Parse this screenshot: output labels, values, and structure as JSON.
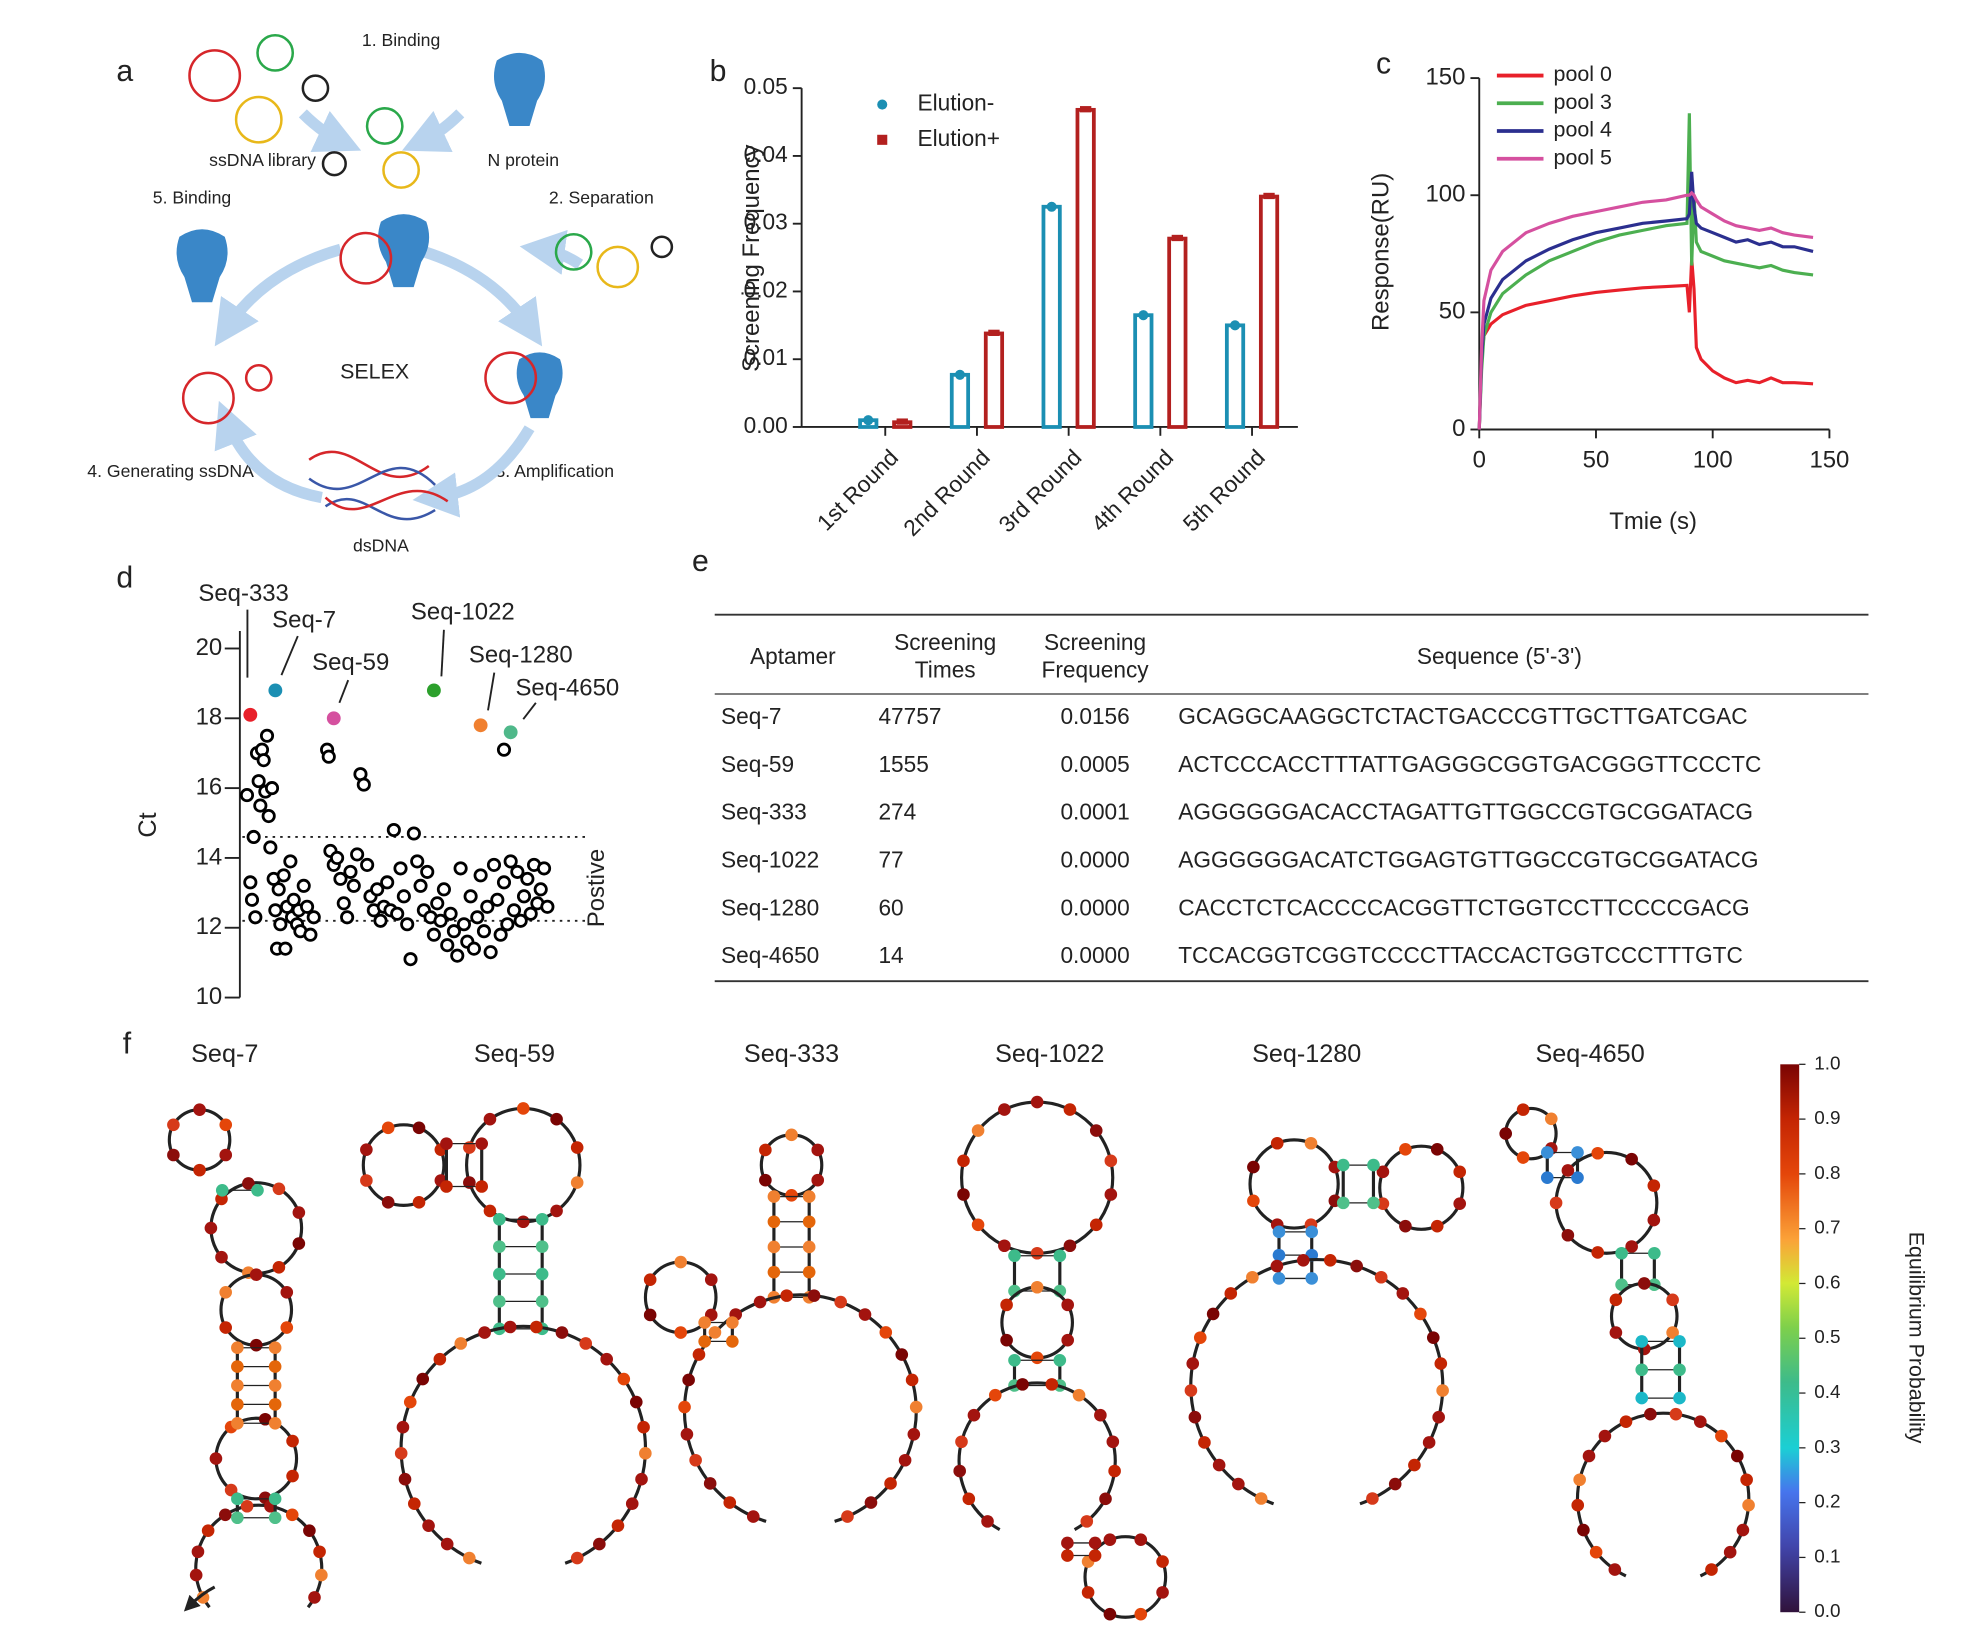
{
  "panel_a": {
    "letter": "a",
    "labels": [
      "1. Binding",
      "ssDNA library",
      "N protein",
      "5. Binding",
      "2. Separation",
      "SELEX",
      "3. Amplification",
      "4. Generating ssDNA",
      "dsDNA"
    ]
  },
  "chart_data": [
    {
      "type": "bar",
      "label": "b",
      "ylabel": "Screening Frequency",
      "categories": [
        "1st Round",
        "2nd Round",
        "3rd Round",
        "4th Round",
        "5th Round"
      ],
      "series": [
        {
          "name": "Elution-",
          "color": "#1b8fb3",
          "marker": "circle",
          "values": [
            0.001,
            0.0077,
            0.0325,
            0.0165,
            0.015
          ]
        },
        {
          "name": "Elution+",
          "color": "#b3201f",
          "marker": "square",
          "values": [
            0.0007,
            0.0138,
            0.0468,
            0.0278,
            0.034
          ]
        }
      ],
      "ylim": [
        0,
        0.05
      ],
      "yticks": [
        {
          "value": 0,
          "label": "0.00"
        },
        0.01,
        0.02,
        0.03,
        0.04,
        0.05
      ]
    },
    {
      "type": "line",
      "label": "c",
      "xlabel": "Tmie (s)",
      "ylabel": "Response(RU)",
      "legend": "top-left",
      "x": [
        0,
        1,
        2,
        5,
        10,
        20,
        30,
        40,
        50,
        60,
        70,
        80,
        89,
        90,
        91,
        92,
        93,
        95,
        100,
        105,
        110,
        115,
        120,
        125,
        130,
        135,
        143
      ],
      "series": [
        {
          "name": "pool 0",
          "color": "#e8202a",
          "values": [
            0,
            30,
            40,
            45,
            49,
            53,
            55,
            57,
            58.5,
            59.5,
            60.5,
            61,
            61.5,
            50,
            73,
            60,
            35,
            30,
            25,
            22,
            20,
            21,
            20,
            22,
            20,
            20,
            19.5
          ]
        },
        {
          "name": "pool 3",
          "color": "#4caf50",
          "values": [
            0,
            25,
            40,
            50,
            58,
            66,
            72,
            76,
            80,
            83,
            85,
            87,
            88,
            135,
            70,
            100,
            80,
            76,
            74,
            72,
            71,
            70,
            69,
            70,
            68,
            67,
            66
          ]
        },
        {
          "name": "pool 4",
          "color": "#2b2f8f",
          "values": [
            0,
            30,
            45,
            56,
            64,
            72,
            77,
            81,
            84,
            86,
            88,
            89,
            90,
            92,
            110,
            95,
            88,
            86,
            84,
            82,
            80,
            81,
            79,
            80,
            78,
            78,
            76
          ]
        },
        {
          "name": "pool 5",
          "color": "#d5509f",
          "values": [
            0,
            35,
            55,
            68,
            76,
            84,
            88,
            91,
            93,
            95,
            97,
            98,
            100,
            100,
            101,
            100,
            98,
            95,
            92,
            89,
            87,
            86,
            85,
            86,
            84,
            83,
            82
          ]
        }
      ],
      "xlim": [
        0,
        150
      ],
      "xticks": [
        0,
        50,
        100,
        150
      ],
      "ylim": [
        0,
        150
      ],
      "yticks": [
        0,
        50,
        100,
        150
      ]
    },
    {
      "type": "scatter",
      "label": "d",
      "ylabel": "Ct",
      "color": "#000000",
      "x": [
        1,
        2,
        2.5,
        3,
        3.5,
        4,
        4.5,
        5,
        5.5,
        6,
        6.5,
        7,
        7.5,
        8,
        8.5,
        9,
        9.5,
        10,
        10.5,
        11,
        12,
        12.5,
        13,
        14,
        14.5,
        15,
        16,
        16.5,
        17,
        18,
        19,
        20,
        21,
        25,
        25.5,
        26,
        27,
        28,
        29,
        30,
        31,
        32,
        33,
        34,
        35,
        36,
        37,
        38,
        39,
        40,
        41,
        42,
        43,
        44,
        45,
        46,
        47,
        48,
        49,
        50,
        51,
        52,
        53,
        54,
        55,
        56,
        57,
        58,
        59,
        60,
        61,
        62,
        63,
        64,
        65,
        66,
        67,
        68,
        69,
        70,
        71,
        72,
        73,
        74,
        75,
        76,
        77,
        78,
        79,
        80,
        81,
        82,
        83,
        84,
        85,
        86,
        87,
        88,
        89,
        90,
        91,
        78
      ],
      "y": [
        15.8,
        13.3,
        12.8,
        14.6,
        12.3,
        17,
        16.2,
        15.5,
        17.1,
        16.8,
        15.9,
        17.5,
        15.2,
        14.3,
        16,
        13.4,
        12.5,
        11.4,
        13.1,
        12.1,
        13.5,
        11.4,
        12.6,
        13.9,
        12.3,
        12.8,
        12.1,
        12.5,
        11.9,
        13.2,
        12.6,
        11.8,
        12.3,
        17.1,
        16.9,
        14.2,
        13.8,
        14,
        13.4,
        12.7,
        12.3,
        13.6,
        13.2,
        14.1,
        16.4,
        16.1,
        13.8,
        12.9,
        12.5,
        13.1,
        12.2,
        12.6,
        13.3,
        12.5,
        14.8,
        12.4,
        13.7,
        12.9,
        12.1,
        11.1,
        14.7,
        13.9,
        13.2,
        12.5,
        13.6,
        12.3,
        11.8,
        12.7,
        12.2,
        13.1,
        11.5,
        12.4,
        11.9,
        11.2,
        13.7,
        12.1,
        11.6,
        12.9,
        11.4,
        12.3,
        13.5,
        11.9,
        12.6,
        11.3,
        13.8,
        12.8,
        11.8,
        13.3,
        12.1,
        13.9,
        12.5,
        13.6,
        12.2,
        12.9,
        13.4,
        12.4,
        13.8,
        12.7,
        13.1,
        13.7,
        12.6,
        17.1
      ],
      "highlights": [
        {
          "name": "Seq-333",
          "color": "#e8202a",
          "x": 2,
          "y": 18.1
        },
        {
          "name": "Seq-7",
          "color": "#1b8fb3",
          "x": 9.5,
          "y": 18.8
        },
        {
          "name": "Seq-59",
          "color": "#d5509f",
          "x": 27,
          "y": 18.0
        },
        {
          "name": "Seq-1022",
          "color": "#2ca02c",
          "x": 57,
          "y": 18.8
        },
        {
          "name": "Seq-1280",
          "color": "#f08030",
          "x": 71,
          "y": 17.8
        },
        {
          "name": "Seq-4650",
          "color": "#4fb88a",
          "x": 80,
          "y": 17.6
        }
      ],
      "thresholds": [
        14.6,
        12.2
      ],
      "threshold_label": "Postive",
      "xlim": [
        0,
        100
      ],
      "ylim": [
        10,
        20.5
      ],
      "yticks": [
        10,
        12,
        14,
        16,
        18,
        20
      ]
    }
  ],
  "table": {
    "label": "e",
    "header": [
      "Aptamer",
      "Screening Times",
      "Screening Frequency",
      "Sequence (5'-3')"
    ],
    "rows": [
      [
        "Seq-7",
        "47757",
        "0.0156",
        "GCAGGCAAGGCTCTACTGACCCGTTGCTTGATCGAC"
      ],
      [
        "Seq-59",
        "1555",
        "0.0005",
        "ACTCCCACCTTTATTGAGGGCGGTGACGGGTTCCCTC"
      ],
      [
        "Seq-333",
        "274",
        "0.0001",
        "AGGGGGGACACCTAGATTGTTGGCCGTGCGGATACG"
      ],
      [
        "Seq-1022",
        "77",
        "0.0000",
        "AGGGGGGACATCTGGAGTGTTGGCCGTGCGGATACG"
      ],
      [
        "Seq-1280",
        "60",
        "0.0000",
        "CACCTCTCACCCCACGGTTCTGGTCCTTCCCCGACG"
      ],
      [
        "Seq-4650",
        "14",
        "0.0000",
        "TCCACGGTCGGTCCCCTTACCACTGGTCCCTTTGTC"
      ]
    ]
  },
  "panel_f": {
    "letter": "f",
    "titles": [
      "Seq-7",
      "Seq-59",
      "Seq-333",
      "Seq-1022",
      "Seq-1280",
      "Seq-4650"
    ],
    "colorbar": {
      "label": "Equilibrium Probability",
      "lim": [
        0,
        1
      ],
      "ticks": [
        {
          "value": 1,
          "label": "1.0"
        },
        0.9,
        0.8,
        0.7,
        0.6,
        0.5,
        0.4,
        0.3,
        0.2,
        0.1,
        {
          "value": 0,
          "label": "0.0"
        }
      ]
    }
  }
}
